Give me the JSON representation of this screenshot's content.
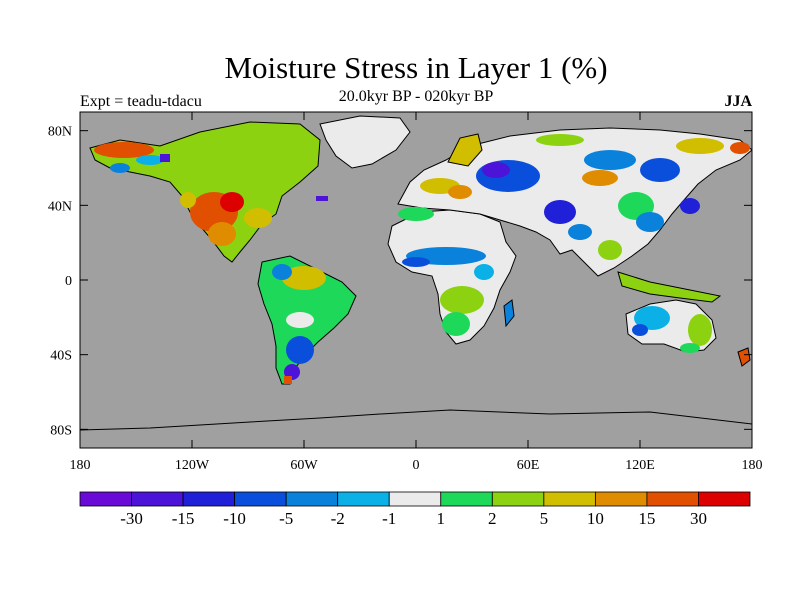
{
  "title": "Moisture Stress in Layer 1 (%)",
  "subtitle": "20.0kyr BP - 020kyr BP",
  "left_string": "Expt = teadu-tdacu",
  "right_string": "JJA",
  "colors": {
    "ocean": "#a0a0a0",
    "coast": "#000000"
  },
  "axes": {
    "lon_ticks": [
      {
        "lon": -180,
        "label": "180"
      },
      {
        "lon": -120,
        "label": "120W"
      },
      {
        "lon": -60,
        "label": "60W"
      },
      {
        "lon": 0,
        "label": "0"
      },
      {
        "lon": 60,
        "label": "60E"
      },
      {
        "lon": 120,
        "label": "120E"
      },
      {
        "lon": 180,
        "label": "180"
      }
    ],
    "lat_ticks": [
      {
        "lat": 80,
        "label": "80N"
      },
      {
        "lat": 40,
        "label": "40N"
      },
      {
        "lat": 0,
        "label": "0"
      },
      {
        "lat": -40,
        "label": "40S"
      },
      {
        "lat": -80,
        "label": "80S"
      }
    ]
  },
  "colorbar": {
    "colors": [
      "#6a0ad6",
      "#4b14d8",
      "#2020d8",
      "#0a4fdc",
      "#0a82dc",
      "#0ab0e6",
      "#ebebeb",
      "#1ed85a",
      "#8cd210",
      "#d2be00",
      "#e08c00",
      "#e05000",
      "#dc0000"
    ],
    "labels": [
      "-30",
      "-15",
      "-10",
      "-5",
      "-2",
      "-1",
      "1",
      "2",
      "5",
      "10",
      "15",
      "30"
    ]
  }
}
